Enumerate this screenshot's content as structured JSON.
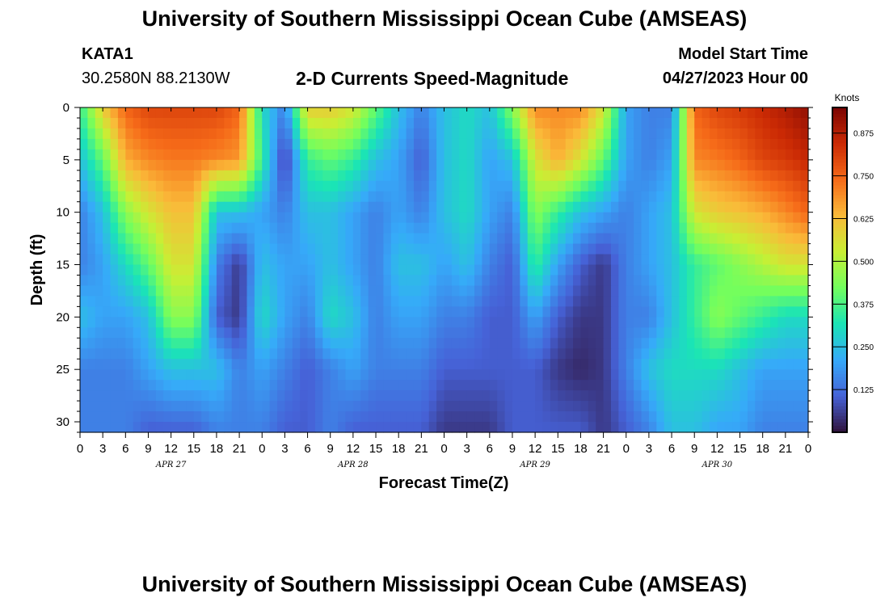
{
  "header": {
    "title": "University of Southern Mississippi Ocean Cube (AMSEAS)",
    "station": "KATA1",
    "location": "30.2580N  88.2130W",
    "plot_title": "2-D Currents Speed-Magnitude",
    "start_label": "Model Start Time",
    "start_value": "04/27/2023 Hour 00"
  },
  "footer": {
    "title": "University of Southern Mississippi Ocean Cube (AMSEAS)"
  },
  "chart_data": {
    "type": "heatmap",
    "xlabel": "Forecast Time(Z)",
    "ylabel": "Depth (ft)",
    "x_tick_labels": [
      "0",
      "3",
      "6",
      "9",
      "12",
      "15",
      "18",
      "21",
      "0",
      "3",
      "6",
      "9",
      "12",
      "15",
      "18",
      "21",
      "0",
      "3",
      "6",
      "9",
      "12",
      "15",
      "18",
      "21",
      "0",
      "3",
      "6",
      "9",
      "12",
      "15",
      "18",
      "21",
      "0"
    ],
    "x_range_hours": [
      0,
      96
    ],
    "day_labels": [
      {
        "label": "APR 27",
        "hour": 12
      },
      {
        "label": "APR 28",
        "hour": 36
      },
      {
        "label": "APR 29",
        "hour": 60
      },
      {
        "label": "APR 30",
        "hour": 84
      }
    ],
    "y_ticks": [
      0,
      5,
      10,
      15,
      20,
      25,
      30
    ],
    "y_range": [
      0,
      31
    ],
    "y_inverted": true,
    "colorbar": {
      "unit_label": "Knots",
      "range": [
        0.0,
        0.95
      ],
      "ticks": [
        "0.125",
        "0.250",
        "0.375",
        "0.500",
        "0.625",
        "0.750",
        "0.875"
      ],
      "tick_values": [
        0.125,
        0.25,
        0.375,
        0.5,
        0.625,
        0.75,
        0.875
      ],
      "colormap": [
        "#30123b",
        "#4662d7",
        "#36aaf9",
        "#1ae4b6",
        "#72fe5e",
        "#c8ef34",
        "#faba39",
        "#f66b19",
        "#cb2a04",
        "#7a0403"
      ]
    },
    "depths_ft": [
      0,
      5,
      10,
      15,
      20,
      25,
      31
    ],
    "times_h": [
      0,
      3,
      6,
      9,
      12,
      15,
      18,
      21,
      24,
      27,
      30,
      33,
      36,
      39,
      42,
      45,
      48,
      51,
      54,
      57,
      60,
      63,
      66,
      69,
      72,
      75,
      78,
      81,
      84,
      87,
      90,
      93,
      96
    ],
    "values_knots": [
      [
        0.35,
        0.6,
        0.75,
        0.8,
        0.8,
        0.8,
        0.8,
        0.75,
        0.3,
        0.15,
        0.6,
        0.6,
        0.55,
        0.4,
        0.25,
        0.15,
        0.25,
        0.3,
        0.25,
        0.45,
        0.7,
        0.7,
        0.7,
        0.55,
        0.2,
        0.15,
        0.15,
        0.75,
        0.8,
        0.82,
        0.85,
        0.88,
        0.92
      ],
      [
        0.25,
        0.4,
        0.65,
        0.7,
        0.72,
        0.72,
        0.7,
        0.68,
        0.35,
        0.05,
        0.35,
        0.4,
        0.35,
        0.25,
        0.2,
        0.1,
        0.25,
        0.3,
        0.2,
        0.25,
        0.55,
        0.65,
        0.55,
        0.4,
        0.2,
        0.15,
        0.2,
        0.7,
        0.72,
        0.75,
        0.8,
        0.82,
        0.85
      ],
      [
        0.15,
        0.25,
        0.45,
        0.55,
        0.62,
        0.62,
        0.25,
        0.25,
        0.2,
        0.15,
        0.25,
        0.25,
        0.2,
        0.15,
        0.2,
        0.15,
        0.25,
        0.3,
        0.2,
        0.15,
        0.45,
        0.35,
        0.25,
        0.2,
        0.15,
        0.2,
        0.25,
        0.55,
        0.6,
        0.62,
        0.65,
        0.7,
        0.75
      ],
      [
        0.15,
        0.2,
        0.3,
        0.4,
        0.55,
        0.55,
        0.15,
        0.05,
        0.25,
        0.2,
        0.2,
        0.25,
        0.2,
        0.15,
        0.25,
        0.25,
        0.2,
        0.25,
        0.15,
        0.1,
        0.35,
        0.2,
        0.1,
        0.05,
        0.15,
        0.2,
        0.25,
        0.35,
        0.4,
        0.45,
        0.5,
        0.55,
        0.55
      ],
      [
        0.25,
        0.2,
        0.2,
        0.25,
        0.45,
        0.45,
        0.1,
        0.05,
        0.3,
        0.2,
        0.15,
        0.3,
        0.25,
        0.15,
        0.2,
        0.2,
        0.15,
        0.15,
        0.1,
        0.1,
        0.2,
        0.1,
        0.05,
        0.05,
        0.15,
        0.15,
        0.25,
        0.35,
        0.45,
        0.4,
        0.35,
        0.3,
        0.3
      ],
      [
        0.15,
        0.15,
        0.15,
        0.2,
        0.25,
        0.25,
        0.25,
        0.15,
        0.2,
        0.15,
        0.1,
        0.15,
        0.2,
        0.15,
        0.15,
        0.15,
        0.1,
        0.1,
        0.1,
        0.1,
        0.1,
        0.05,
        0.03,
        0.05,
        0.15,
        0.25,
        0.3,
        0.3,
        0.3,
        0.25,
        0.2,
        0.2,
        0.2
      ],
      [
        0.15,
        0.15,
        0.15,
        0.1,
        0.1,
        0.1,
        0.15,
        0.15,
        0.15,
        0.1,
        0.1,
        0.15,
        0.1,
        0.1,
        0.1,
        0.1,
        0.05,
        0.05,
        0.05,
        0.1,
        0.1,
        0.1,
        0.1,
        0.05,
        0.1,
        0.15,
        0.25,
        0.25,
        0.2,
        0.2,
        0.15,
        0.15,
        0.15
      ]
    ]
  }
}
